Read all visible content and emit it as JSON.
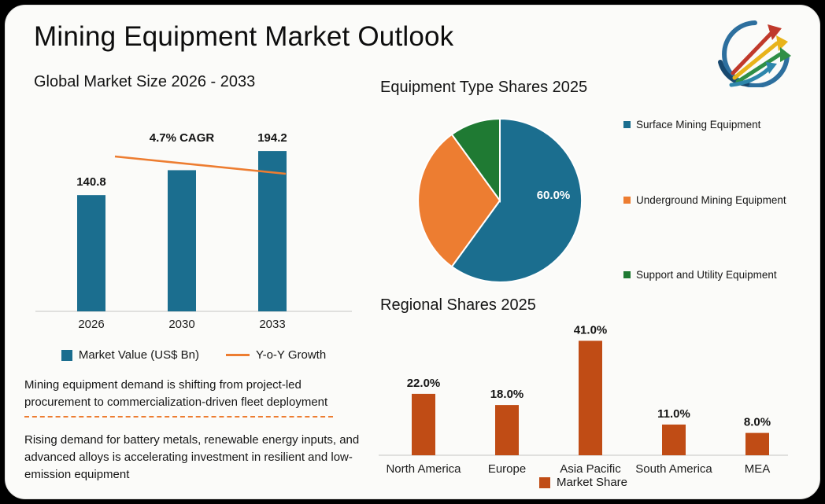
{
  "header": {
    "title": "Mining Equipment Market Outlook"
  },
  "icons": {
    "logo": "growth-arrows-logo"
  },
  "notes": {
    "note1": "Mining equipment demand is shifting from project-led procurement to commercialization-driven fleet deployment",
    "note2": "Rising demand for battery metals, renewable energy inputs, and advanced alloys is accelerating investment in resilient and low-emission equipment"
  },
  "colors": {
    "background": "#000000",
    "card": "#fbfbf9",
    "bar_blue": "#1b6e8f",
    "line_orange": "#ed7d31",
    "pie_blue": "#1b6e8f",
    "pie_orange": "#ed7d31",
    "pie_green": "#1f7a33",
    "regional_rust": "#c04c15",
    "text_dark": "#161616"
  },
  "chart_data": [
    {
      "type": "bar",
      "title": "Global Market Size 2026 - 2033",
      "categories": [
        "2026",
        "2030",
        "2033"
      ],
      "series": [
        {
          "name": "Market Value (US$ Bn)",
          "values": [
            140.8,
            171.0,
            194.2
          ]
        }
      ],
      "value_labels": [
        "140.8",
        "",
        "194.2"
      ],
      "annotation": "4.7% CAGR",
      "secondary_series": {
        "name": "Y-o-Y Growth",
        "type": "line",
        "trend": "slightly declining"
      },
      "ylim": [
        0,
        200
      ],
      "legend_position": "bottom"
    },
    {
      "type": "pie",
      "title": "Equipment Type Shares 2025",
      "labels": [
        "Surface Mining Equipment",
        "Underground Mining Equipment",
        "Support and Utility Equipment"
      ],
      "values": [
        60.0,
        30.0,
        10.0
      ],
      "data_label": "60.0%",
      "legend_position": "right"
    },
    {
      "type": "bar",
      "title": "Regional Shares 2025",
      "categories": [
        "North America",
        "Europe",
        "Asia Pacific",
        "South America",
        "MEA"
      ],
      "values": [
        22.0,
        18.0,
        41.0,
        11.0,
        8.0
      ],
      "value_labels": [
        "22.0%",
        "18.0%",
        "41.0%",
        "11.0%",
        "8.0%"
      ],
      "series_name": "Market Share",
      "ylim": [
        0,
        45
      ],
      "legend_position": "bottom"
    }
  ]
}
